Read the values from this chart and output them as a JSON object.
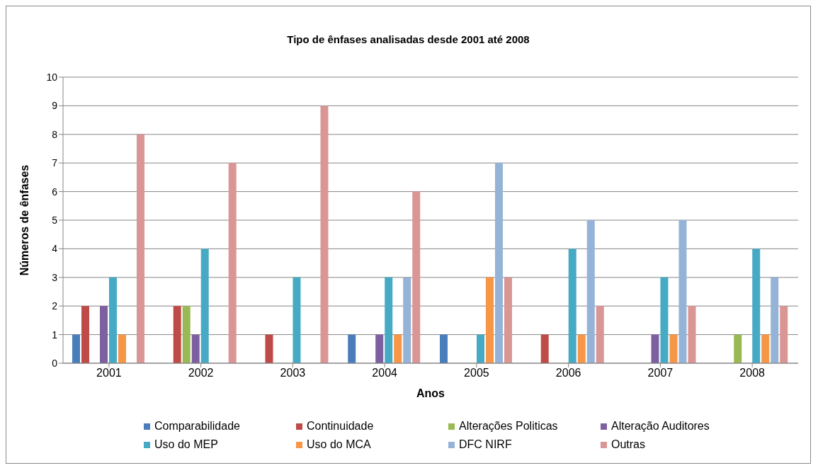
{
  "chart_data": {
    "type": "bar",
    "title": "Tipo de ênfases analisadas desde 2001 até 2008",
    "xlabel": "Anos",
    "ylabel": "Números de ênfases",
    "categories": [
      "2001",
      "2002",
      "2003",
      "2004",
      "2005",
      "2006",
      "2007",
      "2008"
    ],
    "series": [
      {
        "name": "Comparabilidade",
        "color": "#4a7ebb",
        "values": [
          1,
          0,
          0,
          1,
          1,
          0,
          0,
          0
        ]
      },
      {
        "name": "Continuidade",
        "color": "#be4b48",
        "values": [
          2,
          2,
          1,
          0,
          0,
          1,
          0,
          0
        ]
      },
      {
        "name": "Alterações Politicas",
        "color": "#98b954",
        "values": [
          0,
          2,
          0,
          0,
          0,
          0,
          0,
          1
        ]
      },
      {
        "name": "Alteração Auditores",
        "color": "#7d60a0",
        "values": [
          2,
          1,
          0,
          1,
          0,
          0,
          1,
          0
        ]
      },
      {
        "name": "Uso do MEP",
        "color": "#46aac5",
        "values": [
          3,
          4,
          3,
          3,
          1,
          4,
          3,
          4
        ]
      },
      {
        "name": "Uso do MCA",
        "color": "#f79646",
        "values": [
          1,
          0,
          0,
          1,
          3,
          1,
          1,
          1
        ]
      },
      {
        "name": "DFC NIRF",
        "color": "#95b3d7",
        "values": [
          0,
          0,
          0,
          3,
          7,
          5,
          5,
          3
        ]
      },
      {
        "name": "Outras",
        "color": "#d99694",
        "values": [
          8,
          7,
          9,
          6,
          3,
          2,
          2,
          2
        ]
      }
    ],
    "ylim": [
      0,
      10
    ],
    "yticks": [
      0,
      1,
      2,
      3,
      4,
      5,
      6,
      7,
      8,
      9,
      10
    ],
    "grid": "y",
    "legend": "bottom"
  }
}
